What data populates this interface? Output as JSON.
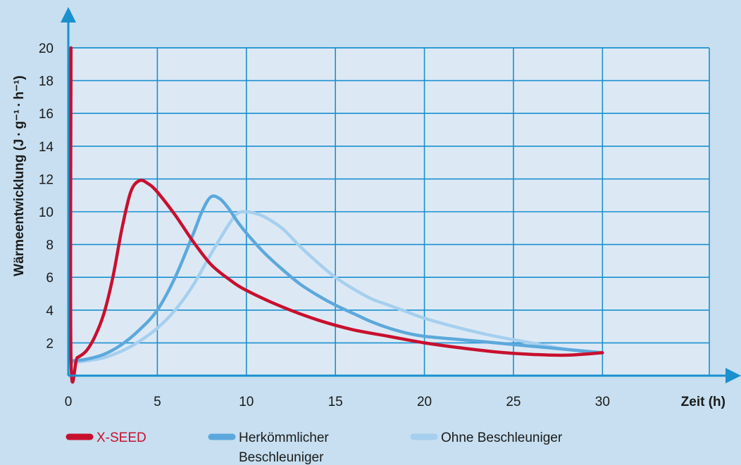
{
  "chart_data": {
    "type": "line",
    "xlabel": "Zeit (h)",
    "ylabel": "Wärmeentwicklung (J · g⁻¹ · h⁻¹)",
    "xlim": [
      0,
      36
    ],
    "ylim": [
      0,
      20
    ],
    "x_ticks": [
      0,
      5,
      10,
      15,
      20,
      25,
      30
    ],
    "y_ticks": [
      2,
      4,
      6,
      8,
      10,
      12,
      14,
      16,
      18,
      20
    ],
    "grid": true,
    "legend_position": "bottom",
    "colors": {
      "background": "#c7dff0",
      "plot_area": "#dce9f5",
      "grid": "#1a90cf",
      "axis": "#1a90cf"
    },
    "series": [
      {
        "name": "X-SEED",
        "color": "#c8102e",
        "legend_lines": [
          "X-SEED"
        ],
        "points": [
          [
            0.15,
            20
          ],
          [
            0.15,
            1.0
          ],
          [
            0.5,
            1.1
          ],
          [
            1.0,
            1.5
          ],
          [
            1.5,
            2.4
          ],
          [
            2.0,
            3.8
          ],
          [
            2.5,
            6.0
          ],
          [
            3.0,
            8.9
          ],
          [
            3.5,
            11.2
          ],
          [
            4.0,
            11.9
          ],
          [
            4.5,
            11.7
          ],
          [
            5.0,
            11.2
          ],
          [
            6.0,
            9.8
          ],
          [
            7.0,
            8.2
          ],
          [
            8.0,
            6.8
          ],
          [
            9.0,
            5.9
          ],
          [
            10.0,
            5.2
          ],
          [
            12.0,
            4.2
          ],
          [
            14.0,
            3.4
          ],
          [
            16.0,
            2.8
          ],
          [
            18.0,
            2.4
          ],
          [
            20.0,
            2.0
          ],
          [
            22.0,
            1.7
          ],
          [
            24.0,
            1.45
          ],
          [
            26.0,
            1.3
          ],
          [
            28.0,
            1.25
          ],
          [
            30.0,
            1.4
          ]
        ]
      },
      {
        "name": "Herkömmlicher Beschleuniger",
        "color": "#5ca8dc",
        "legend_lines": [
          "Herkömmlicher",
          "Beschleuniger"
        ],
        "points": [
          [
            0.2,
            0.9
          ],
          [
            1.0,
            1.0
          ],
          [
            2.0,
            1.3
          ],
          [
            3.0,
            1.9
          ],
          [
            4.0,
            2.8
          ],
          [
            5.0,
            4.0
          ],
          [
            6.0,
            6.0
          ],
          [
            7.0,
            8.6
          ],
          [
            7.5,
            10.0
          ],
          [
            8.0,
            10.9
          ],
          [
            8.5,
            10.8
          ],
          [
            9.0,
            10.2
          ],
          [
            9.5,
            9.4
          ],
          [
            10.0,
            8.7
          ],
          [
            11.0,
            7.5
          ],
          [
            12.0,
            6.5
          ],
          [
            13.0,
            5.6
          ],
          [
            14.0,
            4.9
          ],
          [
            15.0,
            4.3
          ],
          [
            16.0,
            3.8
          ],
          [
            17.0,
            3.3
          ],
          [
            18.0,
            2.9
          ],
          [
            19.0,
            2.6
          ],
          [
            20.0,
            2.4
          ],
          [
            22.0,
            2.2
          ],
          [
            24.0,
            2.0
          ],
          [
            26.0,
            1.8
          ],
          [
            28.0,
            1.6
          ],
          [
            30.0,
            1.4
          ]
        ]
      },
      {
        "name": "Ohne Beschleuniger",
        "color": "#a6cfee",
        "legend_lines": [
          "Ohne Beschleuniger"
        ],
        "points": [
          [
            0.2,
            0.8
          ],
          [
            1.0,
            0.9
          ],
          [
            2.0,
            1.1
          ],
          [
            3.0,
            1.5
          ],
          [
            4.0,
            2.1
          ],
          [
            5.0,
            2.9
          ],
          [
            6.0,
            4.0
          ],
          [
            7.0,
            5.5
          ],
          [
            8.0,
            7.4
          ],
          [
            9.0,
            9.2
          ],
          [
            9.5,
            9.9
          ],
          [
            10.0,
            10.0
          ],
          [
            10.5,
            9.9
          ],
          [
            11.0,
            9.7
          ],
          [
            12.0,
            9.0
          ],
          [
            13.0,
            7.9
          ],
          [
            14.0,
            6.9
          ],
          [
            15.0,
            6.0
          ],
          [
            16.0,
            5.3
          ],
          [
            17.0,
            4.7
          ],
          [
            18.0,
            4.3
          ],
          [
            19.0,
            3.9
          ],
          [
            20.0,
            3.5
          ],
          [
            22.0,
            2.9
          ],
          [
            24.0,
            2.4
          ],
          [
            26.0,
            2.0
          ],
          [
            28.0,
            1.6
          ],
          [
            30.0,
            1.4
          ]
        ]
      }
    ]
  }
}
